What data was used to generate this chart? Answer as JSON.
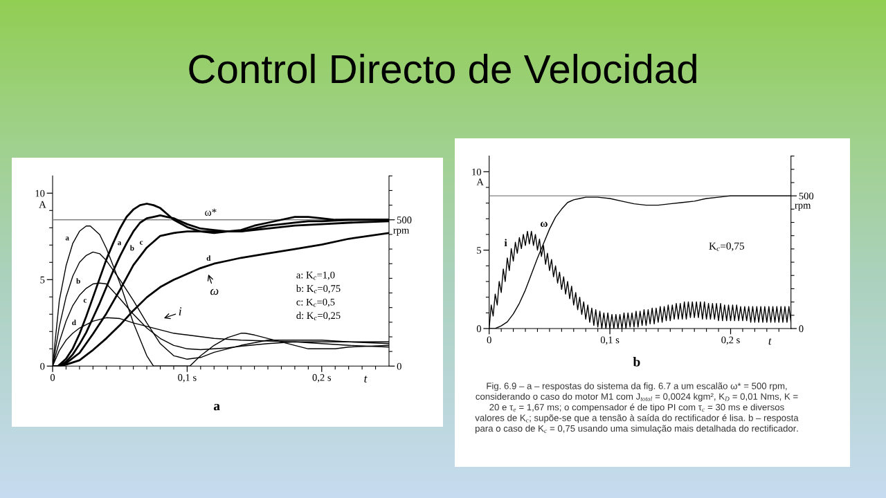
{
  "chart_data": [
    {
      "type": "line",
      "title": "Control Directo de Velocidad",
      "xlabel": "t",
      "ylabel": "A",
      "y2label": "rpm",
      "xlim": [
        0,
        0.25
      ],
      "xticks": [
        0,
        {
          "value": 0.01,
          "label": null
        },
        {
          "value": 0.02,
          "label": null
        },
        {
          "value": 0.03,
          "label": null
        },
        {
          "value": 0.04,
          "label": null
        },
        {
          "value": 0.05,
          "label": null
        },
        {
          "value": 0.06,
          "label": null
        },
        {
          "value": 0.07,
          "label": null
        },
        {
          "value": 0.08,
          "label": null
        },
        {
          "value": 0.09,
          "label": null
        },
        {
          "value": 0.1,
          "label": "0,1 s"
        },
        {
          "value": 0.11,
          "label": null
        },
        {
          "value": 0.12,
          "label": null
        },
        {
          "value": 0.13,
          "label": null
        },
        {
          "value": 0.14,
          "label": null
        },
        {
          "value": 0.15,
          "label": null
        },
        {
          "value": 0.16,
          "label": null
        },
        {
          "value": 0.17,
          "label": null
        },
        {
          "value": 0.18,
          "label": null
        },
        {
          "value": 0.19,
          "label": null
        },
        {
          "value": 0.2,
          "label": "0,2 s"
        },
        {
          "value": 0.21,
          "label": null
        },
        {
          "value": 0.22,
          "label": null
        },
        {
          "value": 0.23,
          "label": null
        },
        {
          "value": 0.24,
          "label": null
        }
      ],
      "ylim": [
        0,
        11
      ],
      "yticks": [
        0,
        {
          "value": 1,
          "label": null
        },
        {
          "value": 2,
          "label": null
        },
        {
          "value": 3,
          "label": null
        },
        {
          "value": 4,
          "label": null
        },
        5,
        {
          "value": 6,
          "label": null
        },
        {
          "value": 7,
          "label": null
        },
        {
          "value": 8,
          "label": null
        },
        {
          "value": 9,
          "label": null
        },
        10
      ],
      "y2lim": [
        0,
        650
      ],
      "y2ticks": [
        0,
        {
          "value": 50,
          "label": null
        },
        {
          "value": 100,
          "label": null
        },
        {
          "value": 150,
          "label": null
        },
        {
          "value": 200,
          "label": null
        },
        {
          "value": 250,
          "label": null
        },
        {
          "value": 300,
          "label": null
        },
        {
          "value": 350,
          "label": null
        },
        {
          "value": 400,
          "label": null
        },
        {
          "value": 450,
          "label": null
        },
        500,
        {
          "value": 550,
          "label": null
        },
        {
          "value": 600,
          "label": null
        },
        {
          "value": 650,
          "label": null
        }
      ],
      "ref_lines": [
        {
          "axis": "y2",
          "value": 500,
          "label": "ω*",
          "color": "#808080"
        }
      ],
      "series": [
        {
          "name": "a",
          "color": "#000000",
          "x": [
            0,
            0.005,
            0.01,
            0.015,
            0.02,
            0.025,
            0.028,
            0.035,
            0.04,
            0.05,
            0.06,
            0.07,
            0.075,
            0.102,
            0.11,
            0.12,
            0.13,
            0.14,
            0.143,
            0.15,
            0.16,
            0.17,
            0.18,
            0.19,
            0.2,
            0.21,
            0.22,
            0.25
          ],
          "values": [
            0,
            3.8,
            5.8,
            7.1,
            7.8,
            8.1,
            8.1,
            7.6,
            6.8,
            4.8,
            2.5,
            0.6,
            0,
            0,
            0.6,
            1.2,
            1.65,
            1.9,
            1.9,
            1.8,
            1.6,
            1.4,
            1.2,
            1.0,
            1.0,
            1.0,
            1.1,
            1.2
          ]
        },
        {
          "name": "b",
          "color": "#000000",
          "x": [
            0,
            0.005,
            0.01,
            0.015,
            0.02,
            0.025,
            0.03,
            0.035,
            0.04,
            0.05,
            0.06,
            0.07,
            0.08,
            0.09,
            0.1,
            0.11,
            0.12,
            0.13,
            0.14,
            0.16,
            0.18,
            0.2,
            0.22,
            0.25
          ],
          "values": [
            0,
            2.3,
            4.0,
            5.2,
            6.0,
            6.4,
            6.6,
            6.5,
            6.1,
            5.0,
            3.8,
            2.5,
            1.3,
            0.6,
            0.4,
            0.5,
            0.8,
            1.0,
            1.2,
            1.5,
            1.5,
            1.5,
            1.4,
            1.3
          ]
        },
        {
          "name": "c",
          "color": "#000000",
          "x": [
            0,
            0.005,
            0.01,
            0.015,
            0.02,
            0.025,
            0.03,
            0.035,
            0.04,
            0.05,
            0.06,
            0.07,
            0.08,
            0.09,
            0.1,
            0.11,
            0.12,
            0.13,
            0.14,
            0.16,
            0.18,
            0.2,
            0.22,
            0.25
          ],
          "values": [
            0,
            1.4,
            2.6,
            3.5,
            4.1,
            4.5,
            4.75,
            4.8,
            4.75,
            3.9,
            3.0,
            2.2,
            1.6,
            1.2,
            1.0,
            0.95,
            1.0,
            1.05,
            1.15,
            1.3,
            1.4,
            1.3,
            1.2,
            1.1
          ]
        },
        {
          "name": "d",
          "color": "#000000",
          "x": [
            0,
            0.005,
            0.01,
            0.015,
            0.02,
            0.025,
            0.03,
            0.04,
            0.05,
            0.06,
            0.07,
            0.08,
            0.09,
            0.1,
            0.12,
            0.14,
            0.16,
            0.18,
            0.2,
            0.22,
            0.25
          ],
          "values": [
            0,
            0.9,
            1.5,
            1.9,
            2.2,
            2.4,
            2.6,
            2.8,
            2.75,
            2.5,
            2.3,
            2.1,
            1.9,
            1.8,
            1.6,
            1.5,
            1.45,
            1.4,
            1.4,
            1.4,
            1.4
          ]
        },
        {
          "name": "a",
          "color": "#000000",
          "axis": "y2",
          "x": [
            0,
            0.004,
            0.01,
            0.015,
            0.02,
            0.025,
            0.03,
            0.035,
            0.04,
            0.045,
            0.05,
            0.055,
            0.06,
            0.065,
            0.07,
            0.075,
            0.08,
            0.085,
            0.09,
            0.1,
            0.11,
            0.12,
            0.13,
            0.14,
            0.15,
            0.16,
            0.17,
            0.18,
            0.19,
            0.2,
            0.21,
            0.22,
            0.25
          ],
          "values": [
            0,
            0,
            25,
            60,
            110,
            170,
            235,
            300,
            365,
            420,
            470,
            510,
            535,
            550,
            555,
            550,
            540,
            520,
            500,
            475,
            460,
            455,
            460,
            465,
            480,
            490,
            500,
            510,
            510,
            505,
            500,
            500,
            500
          ]
        },
        {
          "name": "b",
          "color": "#000000",
          "axis": "y2",
          "x": [
            0.005,
            0.01,
            0.015,
            0.02,
            0.025,
            0.03,
            0.035,
            0.04,
            0.045,
            0.05,
            0.055,
            0.06,
            0.065,
            0.07,
            0.075,
            0.08,
            0.085,
            0.09,
            0.1,
            0.11,
            0.12,
            0.13,
            0.14,
            0.15,
            0.16,
            0.17,
            0.18,
            0.19,
            0.2,
            0.22,
            0.25
          ],
          "values": [
            0,
            15,
            40,
            75,
            115,
            165,
            215,
            270,
            325,
            375,
            420,
            460,
            490,
            505,
            510,
            515,
            510,
            505,
            485,
            470,
            465,
            460,
            460,
            470,
            480,
            485,
            490,
            495,
            495,
            500,
            500
          ]
        },
        {
          "name": "c",
          "color": "#000000",
          "axis": "y2",
          "x": [
            0,
            0.005,
            0.01,
            0.02,
            0.03,
            0.04,
            0.05,
            0.06,
            0.07,
            0.08,
            0.09,
            0.1,
            0.12,
            0.14,
            0.16,
            0.18,
            0.2,
            0.22,
            0.25
          ],
          "values": [
            0,
            0,
            10,
            45,
            110,
            180,
            260,
            345,
            405,
            445,
            455,
            460,
            460,
            460,
            470,
            480,
            485,
            490,
            495
          ]
        },
        {
          "name": "d",
          "color": "#000000",
          "axis": "y2",
          "x": [
            0,
            0.005,
            0.01,
            0.02,
            0.03,
            0.04,
            0.05,
            0.06,
            0.07,
            0.08,
            0.09,
            0.1,
            0.11,
            0.12,
            0.13,
            0.14,
            0.16,
            0.18,
            0.2,
            0.22,
            0.25
          ],
          "values": [
            0,
            0,
            5,
            20,
            55,
            95,
            140,
            190,
            235,
            270,
            295,
            315,
            335,
            350,
            360,
            370,
            385,
            400,
            415,
            435,
            455
          ]
        }
      ],
      "annotations": [
        "ω",
        "i",
        "a: K$_{c}$=1,0",
        "b: K$_{c}$=0,75",
        "c: K$_{c}$=0,5",
        "d: K$_{c}$=0,25",
        "a"
      ]
    },
    {
      "type": "line",
      "xlabel": "t",
      "ylabel": "A",
      "y2label": "rpm",
      "xlim": [
        0,
        0.25
      ],
      "xticks": [
        0,
        {
          "value": 0.01,
          "label": null
        },
        {
          "value": 0.02,
          "label": null
        },
        {
          "value": 0.03,
          "label": null
        },
        {
          "value": 0.04,
          "label": null
        },
        {
          "value": 0.05,
          "label": null
        },
        {
          "value": 0.06,
          "label": null
        },
        {
          "value": 0.07,
          "label": null
        },
        {
          "value": 0.08,
          "label": null
        },
        {
          "value": 0.09,
          "label": null
        },
        {
          "value": 0.1,
          "label": "0,1 s"
        },
        {
          "value": 0.11,
          "label": null
        },
        {
          "value": 0.12,
          "label": null
        },
        {
          "value": 0.13,
          "label": null
        },
        {
          "value": 0.14,
          "label": null
        },
        {
          "value": 0.15,
          "label": null
        },
        {
          "value": 0.16,
          "label": null
        },
        {
          "value": 0.17,
          "label": null
        },
        {
          "value": 0.18,
          "label": null
        },
        {
          "value": 0.19,
          "label": null
        },
        {
          "value": 0.2,
          "label": "0,2 s"
        },
        {
          "value": 0.21,
          "label": null
        },
        {
          "value": 0.22,
          "label": null
        },
        {
          "value": 0.23,
          "label": null
        },
        {
          "value": 0.24,
          "label": null
        }
      ],
      "ylim": [
        0,
        11
      ],
      "yticks": [
        0,
        {
          "value": 1,
          "label": null
        },
        {
          "value": 2,
          "label": null
        },
        {
          "value": 3,
          "label": null
        },
        {
          "value": 4,
          "label": null
        },
        5,
        {
          "value": 6,
          "label": null
        },
        {
          "value": 7,
          "label": null
        },
        {
          "value": 8,
          "label": null
        },
        {
          "value": 9,
          "label": null
        },
        10
      ],
      "y2lim": [
        0,
        650
      ],
      "y2ticks": [
        0,
        {
          "value": 50,
          "label": null
        },
        {
          "value": 100,
          "label": null
        },
        {
          "value": 150,
          "label": null
        },
        {
          "value": 200,
          "label": null
        },
        {
          "value": 250,
          "label": null
        },
        {
          "value": 300,
          "label": null
        },
        {
          "value": 350,
          "label": null
        },
        {
          "value": 400,
          "label": null
        },
        {
          "value": 450,
          "label": null
        },
        500,
        {
          "value": 550,
          "label": null
        },
        {
          "value": 600,
          "label": null
        },
        {
          "value": 650,
          "label": null
        }
      ],
      "ref_lines": [
        {
          "axis": "y2",
          "value": 500,
          "color": "#808080"
        }
      ],
      "series": [
        {
          "name": "i",
          "color": "#000000",
          "x": [
            0,
            0.0017,
            0.0033,
            0.005,
            0.0067,
            0.0083,
            0.01,
            0.0117,
            0.0133,
            0.015,
            0.0167,
            0.0183,
            0.02,
            0.0217,
            0.0233,
            0.025,
            0.0267,
            0.0283,
            0.03,
            0.0317,
            0.0333,
            0.035,
            0.0367,
            0.0383,
            0.04,
            0.0417,
            0.0433,
            0.045,
            0.0467,
            0.0483,
            0.05,
            0.0517,
            0.0533,
            0.055,
            0.0567,
            0.0583,
            0.06,
            0.0617,
            0.0633,
            0.065,
            0.0667,
            0.0683,
            0.07,
            0.0717,
            0.0733,
            0.075,
            0.0767,
            0.0783,
            0.08,
            0.0817,
            0.0833,
            0.085,
            0.0867,
            0.0883,
            0.09,
            0.0917,
            0.0933,
            0.095,
            0.0967,
            0.0983,
            0.1,
            0.1017,
            0.1033,
            0.105,
            0.1067,
            0.1083,
            0.11,
            0.1117,
            0.1133,
            0.115,
            0.1167,
            0.1183,
            0.12,
            0.1217,
            0.1233,
            0.125,
            0.1267,
            0.1283,
            0.13,
            0.1317,
            0.1333,
            0.135,
            0.1367,
            0.1383,
            0.14,
            0.1417,
            0.1433,
            0.145,
            0.1467,
            0.1483,
            0.15,
            0.1517,
            0.1533,
            0.155,
            0.1567,
            0.1583,
            0.16,
            0.1617,
            0.1633,
            0.165,
            0.1667,
            0.1683,
            0.17,
            0.1717,
            0.1733,
            0.175,
            0.1767,
            0.1783,
            0.18,
            0.1817,
            0.1833,
            0.185,
            0.1867,
            0.1883,
            0.19,
            0.1917,
            0.1933,
            0.195,
            0.1967,
            0.1983,
            0.2,
            0.2017,
            0.2033,
            0.205,
            0.2067,
            0.2083,
            0.21,
            0.2117,
            0.2133,
            0.215,
            0.2167,
            0.2183,
            0.22,
            0.2217,
            0.2233,
            0.225,
            0.2267,
            0.2283,
            0.23,
            0.2317,
            0.2333,
            0.235,
            0.2367,
            0.2383,
            0.24,
            0.2417,
            0.2433,
            0.245,
            0.2467,
            0.2483,
            0.25
          ],
          "values": [
            0,
            1.5,
            0.8,
            2.2,
            1.5,
            3.0,
            2.3,
            3.8,
            3.0,
            4.5,
            3.7,
            5.1,
            4.3,
            5.5,
            4.8,
            5.8,
            5.1,
            6.0,
            5.3,
            6.2,
            5.4,
            6.2,
            5.3,
            6.0,
            5.0,
            5.7,
            4.6,
            5.3,
            4.1,
            4.8,
            3.7,
            4.4,
            3.3,
            4.0,
            2.9,
            3.6,
            2.5,
            3.3,
            2.2,
            3.0,
            1.9,
            2.7,
            1.5,
            2.3,
            1.2,
            2.0,
            0.9,
            1.7,
            0.6,
            1.5,
            0.4,
            1.3,
            0.2,
            1.2,
            0.1,
            1.1,
            0,
            1.0,
            0,
            1.0,
            0,
            0.9,
            0,
            0.9,
            0,
            0.9,
            0,
            1.0,
            0,
            1.0,
            0.1,
            1.0,
            0.1,
            1.1,
            0.1,
            1.1,
            0.2,
            1.2,
            0.2,
            1.2,
            0.3,
            1.3,
            0.3,
            1.3,
            0.4,
            1.4,
            0.4,
            1.4,
            0.5,
            1.5,
            0.5,
            1.5,
            0.6,
            1.6,
            0.6,
            1.6,
            0.6,
            1.7,
            0.6,
            1.7,
            0.7,
            1.7,
            0.7,
            1.7,
            0.7,
            1.7,
            0.6,
            1.7,
            0.6,
            1.6,
            0.6,
            1.6,
            0.6,
            1.6,
            0.5,
            1.6,
            0.5,
            1.5,
            0.5,
            1.5,
            0.5,
            1.5,
            0.5,
            1.5,
            0.5,
            1.4,
            0.5,
            1.4,
            0.5,
            1.4,
            0.4,
            1.4,
            0.4,
            1.4,
            0.4,
            1.4,
            0.4,
            1.4,
            0.4,
            1.4,
            0.4,
            1.4,
            0.4,
            1.4,
            0.4,
            1.4,
            0.4,
            1.4,
            0.4,
            1.4,
            0.4
          ]
        },
        {
          "name": "ω",
          "color": "#000000",
          "axis": "y2",
          "x": [
            0,
            0.005,
            0.01,
            0.015,
            0.02,
            0.025,
            0.03,
            0.035,
            0.04,
            0.045,
            0.05,
            0.055,
            0.06,
            0.065,
            0.07,
            0.075,
            0.08,
            0.085,
            0.09,
            0.1,
            0.11,
            0.12,
            0.13,
            0.14,
            0.15,
            0.16,
            0.17,
            0.18,
            0.19,
            0.2,
            0.21,
            0.25
          ],
          "values": [
            0,
            0,
            10,
            25,
            55,
            95,
            145,
            205,
            265,
            320,
            375,
            420,
            450,
            475,
            485,
            490,
            495,
            495,
            495,
            490,
            480,
            470,
            465,
            465,
            470,
            475,
            480,
            490,
            495,
            500,
            500,
            500
          ]
        }
      ],
      "annotations": [
        "K$_{c}$=0,75",
        "b",
        "Fig. 6.9 – a – respostas do sistema da fig. 6.7 a um escalão ω* = 500 rpm, considerando o caso do motor M1 com J$_{total}$ = 0,0024 kgm², K$_{D}$ = 0,01 Nms, K = 20 e τ$_{e}$ = 1,67 ms; o compensador é de tipo PI com τ$_{c}$ = 30 ms e diversos valores de K$_{c}$; supõe-se que a tensão à saída do rectificador é lisa. b – resposta para o caso de K$_{c}$ = 0,75 usando uma simulação mais detalhada do rectificador."
      ]
    }
  ]
}
